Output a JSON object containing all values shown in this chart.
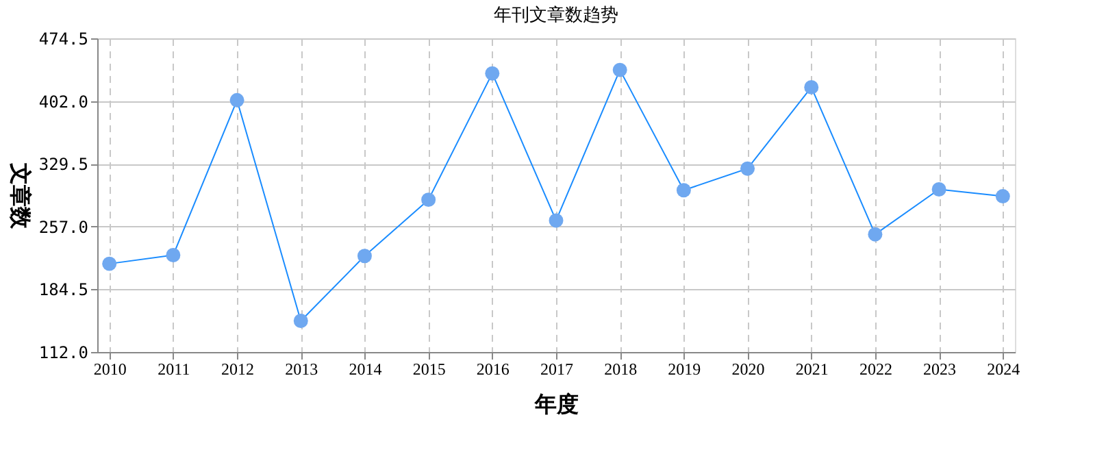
{
  "chart_data": {
    "type": "line",
    "title": "年刊文章数趋势",
    "xlabel": "年度",
    "ylabel": "文章数",
    "categories": [
      "2010",
      "2011",
      "2012",
      "2013",
      "2014",
      "2015",
      "2016",
      "2017",
      "2018",
      "2019",
      "2020",
      "2021",
      "2022",
      "2023",
      "2024"
    ],
    "series": [
      {
        "color": "#1a8cff",
        "values": [
          214,
          224,
          403,
          148,
          223,
          288,
          434,
          264,
          438,
          299,
          324,
          418,
          248,
          300,
          292
        ]
      }
    ],
    "ylim": [
      112,
      474.5
    ],
    "yticks": [
      {
        "value": 112,
        "label": "112.0"
      },
      184.5,
      {
        "value": 257,
        "label": "257.0"
      },
      329.5,
      {
        "value": 402,
        "label": "402.0"
      },
      474.5
    ],
    "grid": true,
    "marker": "circle",
    "line_style": "solid"
  }
}
